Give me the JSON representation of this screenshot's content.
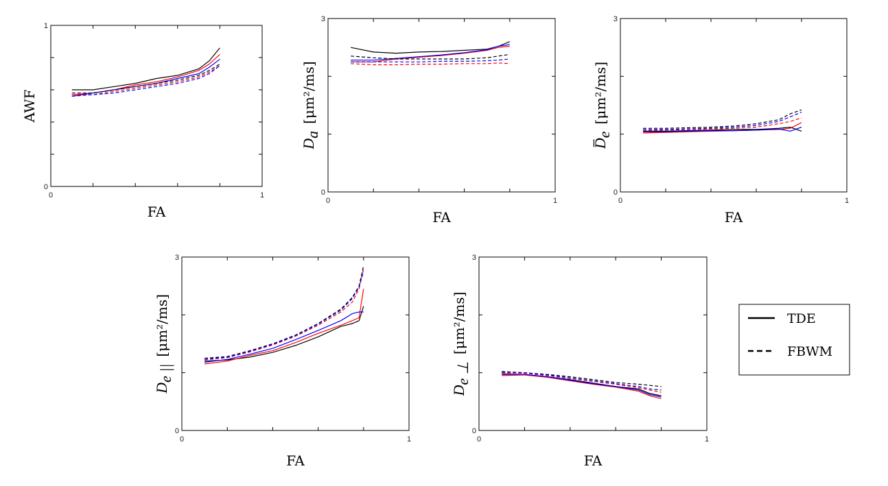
{
  "legend": {
    "entries": [
      {
        "label": "TDE",
        "style": "solid"
      },
      {
        "label": "FBWM",
        "style": "dashed"
      }
    ]
  },
  "colors": {
    "black": "#000000",
    "red": "#ff0000",
    "blue": "#0000ff"
  },
  "chart_data": [
    {
      "type": "line",
      "title": "",
      "xlabel": "FA",
      "ylabel": "AWF",
      "ylabel_parts": {
        "symbol": "",
        "subscript": "",
        "unit": "",
        "plain": "AWF"
      },
      "xlim": [
        0,
        1
      ],
      "ylim": [
        0,
        1
      ],
      "xticks": [
        0,
        0.2,
        0.4,
        0.6,
        0.8,
        1
      ],
      "xtick_labels": [
        "0",
        "",
        "",
        "",
        "",
        "1"
      ],
      "yticks": [
        0,
        0.2,
        0.4,
        0.6,
        0.8,
        1
      ],
      "ytick_labels": [
        "0",
        "",
        "",
        "",
        "",
        "1"
      ],
      "x": [
        0.1,
        0.2,
        0.3,
        0.4,
        0.5,
        0.6,
        0.7,
        0.75,
        0.8
      ],
      "series": [
        {
          "name": "TDE (black)",
          "color": "black",
          "style": "solid",
          "values": [
            0.6,
            0.6,
            0.62,
            0.64,
            0.67,
            0.69,
            0.73,
            0.78,
            0.86
          ]
        },
        {
          "name": "TDE (red)",
          "color": "red",
          "style": "solid",
          "values": [
            0.57,
            0.58,
            0.6,
            0.63,
            0.65,
            0.68,
            0.72,
            0.76,
            0.82
          ]
        },
        {
          "name": "TDE (blue)",
          "color": "blue",
          "style": "solid",
          "values": [
            0.56,
            0.58,
            0.6,
            0.62,
            0.64,
            0.67,
            0.7,
            0.74,
            0.79
          ]
        },
        {
          "name": "FBWM (black)",
          "color": "black",
          "style": "dashed",
          "values": [
            0.58,
            0.58,
            0.6,
            0.62,
            0.64,
            0.66,
            0.69,
            0.72,
            0.76
          ]
        },
        {
          "name": "FBWM (red)",
          "color": "red",
          "style": "dashed",
          "values": [
            0.57,
            0.57,
            0.59,
            0.61,
            0.63,
            0.65,
            0.68,
            0.71,
            0.75
          ]
        },
        {
          "name": "FBWM (blue)",
          "color": "blue",
          "style": "dashed",
          "values": [
            0.56,
            0.57,
            0.58,
            0.6,
            0.62,
            0.64,
            0.67,
            0.7,
            0.75
          ]
        }
      ]
    },
    {
      "type": "line",
      "title": "",
      "xlabel": "FA",
      "ylabel": "D_a [μm²/ms]",
      "ylabel_parts": {
        "symbol": "D",
        "subscript": "a",
        "unit": "[μm²/ms]",
        "plain": ""
      },
      "xlim": [
        0,
        1
      ],
      "ylim": [
        0,
        3
      ],
      "xticks": [
        0,
        0.2,
        0.4,
        0.6,
        0.8,
        1
      ],
      "xtick_labels": [
        "0",
        "",
        "",
        "",
        "",
        "1"
      ],
      "yticks": [
        0,
        1,
        2,
        3
      ],
      "ytick_labels": [
        "0",
        "",
        "",
        "3"
      ],
      "x": [
        0.1,
        0.2,
        0.3,
        0.4,
        0.5,
        0.6,
        0.7,
        0.75,
        0.8
      ],
      "series": [
        {
          "name": "TDE (black)",
          "color": "black",
          "style": "solid",
          "values": [
            2.5,
            2.42,
            2.4,
            2.42,
            2.43,
            2.45,
            2.47,
            2.52,
            2.6
          ]
        },
        {
          "name": "TDE (red)",
          "color": "red",
          "style": "solid",
          "values": [
            2.25,
            2.25,
            2.3,
            2.33,
            2.36,
            2.4,
            2.45,
            2.5,
            2.52
          ]
        },
        {
          "name": "TDE (blue)",
          "color": "blue",
          "style": "solid",
          "values": [
            2.28,
            2.28,
            2.31,
            2.34,
            2.37,
            2.41,
            2.46,
            2.52,
            2.55
          ]
        },
        {
          "name": "FBWM (black)",
          "color": "black",
          "style": "dashed",
          "values": [
            2.35,
            2.32,
            2.3,
            2.3,
            2.3,
            2.3,
            2.32,
            2.35,
            2.38
          ]
        },
        {
          "name": "FBWM (red)",
          "color": "red",
          "style": "dashed",
          "values": [
            2.22,
            2.2,
            2.2,
            2.21,
            2.21,
            2.22,
            2.22,
            2.23,
            2.22
          ]
        },
        {
          "name": "FBWM (blue)",
          "color": "blue",
          "style": "dashed",
          "values": [
            2.25,
            2.25,
            2.25,
            2.25,
            2.26,
            2.26,
            2.27,
            2.28,
            2.3
          ]
        }
      ]
    },
    {
      "type": "line",
      "title": "",
      "xlabel": "FA",
      "ylabel": "D̄_e [μm²/ms]",
      "ylabel_parts": {
        "symbol": "D̅",
        "subscript": "e",
        "unit": "[μm²/ms]",
        "plain": ""
      },
      "xlim": [
        0,
        1
      ],
      "ylim": [
        0,
        3
      ],
      "xticks": [
        0,
        0.2,
        0.4,
        0.6,
        0.8,
        1
      ],
      "xtick_labels": [
        "0",
        "",
        "",
        "",
        "",
        "1"
      ],
      "yticks": [
        0,
        1,
        2,
        3
      ],
      "ytick_labels": [
        "0",
        "",
        "",
        "3"
      ],
      "x": [
        0.1,
        0.2,
        0.3,
        0.4,
        0.5,
        0.6,
        0.7,
        0.75,
        0.8
      ],
      "series": [
        {
          "name": "TDE (black)",
          "color": "black",
          "style": "solid",
          "values": [
            1.05,
            1.05,
            1.06,
            1.07,
            1.08,
            1.08,
            1.1,
            1.12,
            1.05
          ]
        },
        {
          "name": "TDE (red)",
          "color": "red",
          "style": "solid",
          "values": [
            1.02,
            1.03,
            1.04,
            1.05,
            1.06,
            1.07,
            1.08,
            1.1,
            1.2
          ]
        },
        {
          "name": "TDE (blue)",
          "color": "blue",
          "style": "solid",
          "values": [
            1.04,
            1.04,
            1.05,
            1.06,
            1.06,
            1.07,
            1.09,
            1.05,
            1.12
          ]
        },
        {
          "name": "FBWM (black)",
          "color": "black",
          "style": "dashed",
          "values": [
            1.1,
            1.1,
            1.11,
            1.12,
            1.14,
            1.18,
            1.25,
            1.35,
            1.42
          ]
        },
        {
          "name": "FBWM (red)",
          "color": "red",
          "style": "dashed",
          "values": [
            1.06,
            1.07,
            1.08,
            1.09,
            1.1,
            1.12,
            1.18,
            1.22,
            1.28
          ]
        },
        {
          "name": "FBWM (blue)",
          "color": "blue",
          "style": "dashed",
          "values": [
            1.08,
            1.08,
            1.09,
            1.1,
            1.12,
            1.15,
            1.22,
            1.3,
            1.38
          ]
        }
      ]
    },
    {
      "type": "line",
      "title": "",
      "xlabel": "FA",
      "ylabel": "D_e|| [μm²/ms]",
      "ylabel_parts": {
        "symbol": "D",
        "subscript": "e ||",
        "unit": "[μm²/ms]",
        "plain": ""
      },
      "xlim": [
        0,
        1
      ],
      "ylim": [
        0,
        3
      ],
      "xticks": [
        0,
        0.2,
        0.4,
        0.6,
        0.8,
        1
      ],
      "xtick_labels": [
        "0",
        "",
        "",
        "",
        "",
        "1"
      ],
      "yticks": [
        0,
        1,
        2,
        3
      ],
      "ytick_labels": [
        "0",
        "",
        "",
        "3"
      ],
      "x": [
        0.1,
        0.2,
        0.3,
        0.4,
        0.5,
        0.6,
        0.7,
        0.75,
        0.78,
        0.8
      ],
      "series": [
        {
          "name": "TDE (black)",
          "color": "black",
          "style": "solid",
          "values": [
            1.2,
            1.22,
            1.27,
            1.35,
            1.47,
            1.62,
            1.8,
            1.85,
            1.9,
            2.15
          ]
        },
        {
          "name": "TDE (red)",
          "color": "red",
          "style": "solid",
          "values": [
            1.15,
            1.2,
            1.3,
            1.38,
            1.52,
            1.68,
            1.82,
            1.9,
            1.95,
            2.45
          ]
        },
        {
          "name": "TDE (blue)",
          "color": "blue",
          "style": "solid",
          "values": [
            1.18,
            1.23,
            1.32,
            1.42,
            1.57,
            1.73,
            1.9,
            2.02,
            2.05,
            2.05
          ]
        },
        {
          "name": "FBWM (black)",
          "color": "black",
          "style": "dashed",
          "values": [
            1.25,
            1.28,
            1.38,
            1.5,
            1.65,
            1.85,
            2.1,
            2.3,
            2.5,
            2.85
          ]
        },
        {
          "name": "FBWM (red)",
          "color": "red",
          "style": "dashed",
          "values": [
            1.22,
            1.26,
            1.36,
            1.48,
            1.63,
            1.82,
            2.05,
            2.22,
            2.45,
            2.8
          ]
        },
        {
          "name": "FBWM (blue)",
          "color": "blue",
          "style": "dashed",
          "values": [
            1.23,
            1.27,
            1.37,
            1.49,
            1.64,
            1.84,
            2.08,
            2.28,
            2.48,
            2.75
          ]
        }
      ]
    },
    {
      "type": "line",
      "title": "",
      "xlabel": "FA",
      "ylabel": "D_e⊥ [μm²/ms]",
      "ylabel_parts": {
        "symbol": "D",
        "subscript": "e ⊥",
        "unit": "[μm²/ms]",
        "plain": ""
      },
      "xlim": [
        0,
        1
      ],
      "ylim": [
        0,
        3
      ],
      "xticks": [
        0,
        0.2,
        0.4,
        0.6,
        0.8,
        1
      ],
      "xtick_labels": [
        "0",
        "",
        "",
        "",
        "",
        "1"
      ],
      "yticks": [
        0,
        1,
        2,
        3
      ],
      "ytick_labels": [
        "0",
        "",
        "",
        "3"
      ],
      "x": [
        0.1,
        0.2,
        0.3,
        0.4,
        0.5,
        0.6,
        0.7,
        0.75,
        0.8
      ],
      "series": [
        {
          "name": "TDE (black)",
          "color": "black",
          "style": "solid",
          "values": [
            0.98,
            0.97,
            0.93,
            0.88,
            0.82,
            0.76,
            0.72,
            0.64,
            0.6
          ]
        },
        {
          "name": "TDE (red)",
          "color": "red",
          "style": "solid",
          "values": [
            0.95,
            0.96,
            0.92,
            0.86,
            0.8,
            0.75,
            0.68,
            0.6,
            0.55
          ]
        },
        {
          "name": "TDE (blue)",
          "color": "blue",
          "style": "solid",
          "values": [
            0.97,
            0.97,
            0.93,
            0.87,
            0.81,
            0.76,
            0.7,
            0.62,
            0.58
          ]
        },
        {
          "name": "FBWM (black)",
          "color": "black",
          "style": "dashed",
          "values": [
            1.02,
            1.0,
            0.97,
            0.93,
            0.88,
            0.83,
            0.8,
            0.78,
            0.76
          ]
        },
        {
          "name": "FBWM (red)",
          "color": "red",
          "style": "dashed",
          "values": [
            1.0,
            0.99,
            0.95,
            0.9,
            0.85,
            0.8,
            0.74,
            0.7,
            0.66
          ]
        },
        {
          "name": "FBWM (blue)",
          "color": "blue",
          "style": "dashed",
          "values": [
            1.01,
            1.0,
            0.96,
            0.91,
            0.86,
            0.81,
            0.76,
            0.72,
            0.7
          ]
        }
      ]
    }
  ]
}
